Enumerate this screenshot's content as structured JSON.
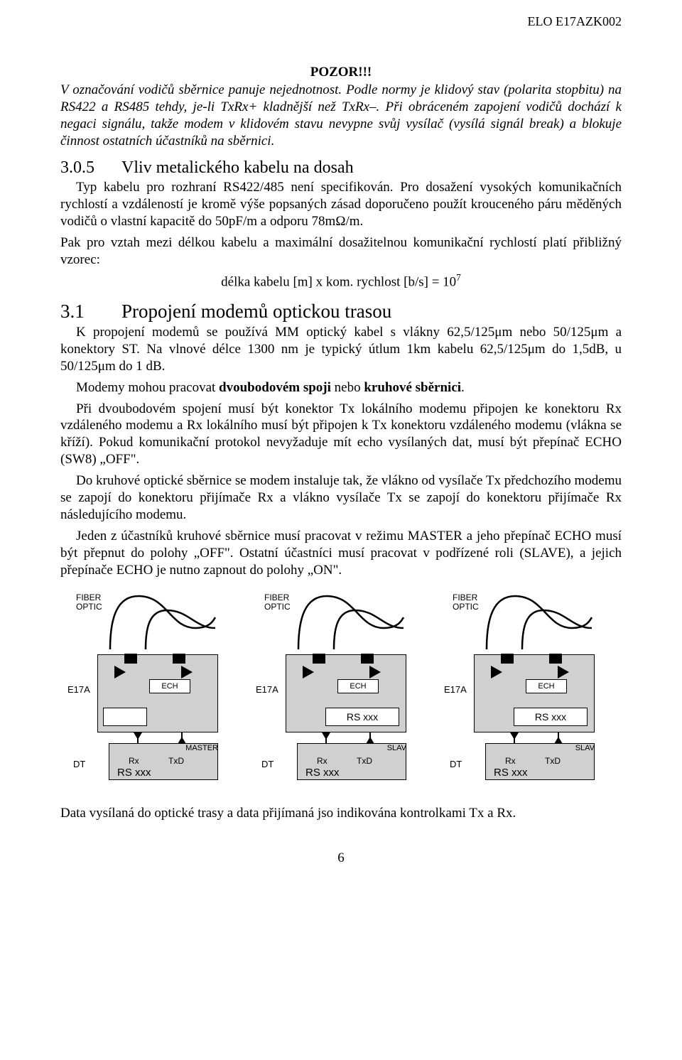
{
  "doc_code": "ELO E17AZK002",
  "warn_title": "POZOR!!!",
  "warn_para": "V označování vodičů sběrnice panuje nejednotnost. Podle normy je klidový stav (polarita stopbitu) na RS422 a RS485 tehdy, je-li TxRx+ kladnější než TxRx–. Při obráceném zapojení vodičů dochází k negaci signálu, takže modem v klidovém stavu nevypne svůj vysílač (vysílá signál break) a blokuje činnost ostatních účastníků na sběrnici.",
  "sec_305_num": "3.0.5",
  "sec_305_title": "Vliv metalického kabelu na dosah",
  "p305_1": "Typ kabelu pro rozhraní RS422/485 není specifikován. Pro dosažení vysokých komunikačních rychlostí a vzdáleností je kromě výše popsaných zásad doporučeno použít krouceného páru měděných vodičů o vlastní kapacitě do 50pF/m a odporu 78mΩ/m.",
  "p305_2": "Pak pro vztah mezi délkou kabelu a maximální dosažitelnou komunikační rychlostí platí přibližný vzorec:",
  "formula_lhs": "délka kabelu [m]  x  kom. rychlost [b/s]  =  10",
  "formula_exp": "7",
  "sec_31_num": "3.1",
  "sec_31_title": "Propojení modemů optickou trasou",
  "p31_1": "K propojení modemů se používá MM optický kabel s vlákny 62,5/125μm nebo 50/125μm a konektory ST. Na vlnové délce 1300 nm je typický útlum 1km kabelu 62,5/125μm do 1,5dB, u 50/125μm do 1 dB.",
  "p31_2_pre": "Modemy mohou pracovat ",
  "p31_2_b1": "dvoubodovém spoji",
  "p31_2_mid": " nebo ",
  "p31_2_b2": "kruhové sběrnici",
  "p31_2_post": ".",
  "p31_3": "Při dvoubodovém spojení musí být konektor Tx lokálního modemu připojen ke konektoru Rx vzdáleného modemu a Rx lokálního musí být připojen k Tx konektoru vzdáleného modemu (vlákna se kříží). Pokud komunikační protokol nevyžaduje mít echo vysílaných dat, musí být přepínač ECHO (SW8) „OFF\".",
  "p31_4": "Do kruhové optické sběrnice se modem instaluje tak, že vlákno od vysílače Tx předchozího modemu se zapojí do konektoru přijímače Rx a vlákno vysílače Tx se zapojí do konektoru přijímače Rx následujícího modemu.",
  "p31_5": "Jeden z účastníků kruhové sběrnice musí pracovat v režimu MASTER a jeho přepínač ECHO musí být přepnut do polohy „OFF\". Ostatní účastníci musí pracovat v podřízené roli (SLAVE), a jejich přepínače ECHO je nutno zapnout do polohy „ON\".",
  "diagram": {
    "fiber_label1": "FIBER",
    "fiber_label2": "OPTIC",
    "e17a": "E17A",
    "echo": "ECH",
    "rs": "RS xxx",
    "dt": "DT",
    "rx": "Rx",
    "txd": "TxD",
    "roles": [
      "MASTER",
      "SLAV",
      "SLAV"
    ],
    "show_rs_top": [
      false,
      true,
      true
    ],
    "show_white_slot": [
      true,
      false,
      false
    ]
  },
  "footer_para": "Data vysílaná do optické trasy a data přijímaná jso indikována kontrolkami Tx a Rx.",
  "page_number": "6"
}
